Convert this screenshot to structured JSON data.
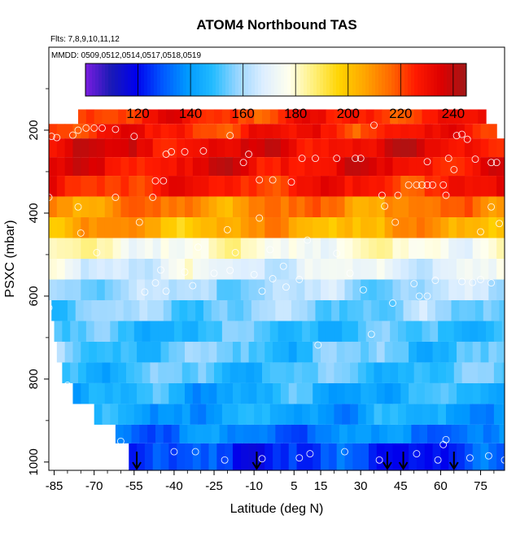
{
  "chart_data": {
    "type": "heatmap",
    "title": "ATOM4 Northbound TAS",
    "flights_note": "Flts: 7,8,9,10,11,12",
    "dates_note": "MMDD: 0509,0512,0514,0517,0518,0519",
    "xlabel": "Latitude (deg N)",
    "ylabel": "PSXC (mbar)",
    "xlim": [
      -87,
      84
    ],
    "ylim": [
      1020,
      0
    ],
    "x_ticks": [
      -85,
      -70,
      -55,
      -40,
      -25,
      -10,
      5,
      15,
      30,
      45,
      60,
      75
    ],
    "y_ticks": [
      200,
      400,
      600,
      800,
      1000
    ],
    "colorbar": {
      "range": [
        100,
        245
      ],
      "ticks": [
        120,
        140,
        160,
        180,
        200,
        220,
        240
      ],
      "colors": [
        "#7a1de0",
        "#1a1ab5",
        "#0000ee",
        "#0055ff",
        "#0099ff",
        "#22bbff",
        "#99d6ff",
        "#ddeeff",
        "#ffffee",
        "#fff07a",
        "#ffd400",
        "#ffa500",
        "#ff6a00",
        "#ff1a00",
        "#dd0000",
        "#a01818"
      ]
    },
    "pressure_levels": [
      200,
      250,
      300,
      350,
      400,
      450,
      500,
      550,
      600,
      650,
      700,
      750,
      800,
      850,
      900,
      950,
      990
    ],
    "layers": [
      {
        "p_top": 150,
        "p_bot": 185,
        "lat_min": -76,
        "lat_max": 77,
        "tas": 225
      },
      {
        "p_top": 185,
        "p_bot": 220,
        "lat_min": -87,
        "lat_max": 81,
        "tas": 226
      },
      {
        "p_top": 220,
        "p_bot": 265,
        "lat_min": -87,
        "lat_max": 84,
        "tas": 232
      },
      {
        "p_top": 265,
        "p_bot": 310,
        "lat_min": -87,
        "lat_max": 84,
        "tas": 231
      },
      {
        "p_top": 310,
        "p_bot": 360,
        "lat_min": -87,
        "lat_max": 84,
        "tas": 226
      },
      {
        "p_top": 360,
        "p_bot": 410,
        "lat_min": -87,
        "lat_max": 84,
        "tas": 212
      },
      {
        "p_top": 410,
        "p_bot": 460,
        "lat_min": -87,
        "lat_max": 84,
        "tas": 205
      },
      {
        "p_top": 460,
        "p_bot": 510,
        "lat_min": -87,
        "lat_max": 84,
        "tas": 178
      },
      {
        "p_top": 510,
        "p_bot": 560,
        "lat_min": -87,
        "lat_max": 84,
        "tas": 170
      },
      {
        "p_top": 560,
        "p_bot": 610,
        "lat_min": -87,
        "lat_max": 84,
        "tas": 160
      },
      {
        "p_top": 610,
        "p_bot": 660,
        "lat_min": -86,
        "lat_max": 84,
        "tas": 156
      },
      {
        "p_top": 660,
        "p_bot": 710,
        "lat_min": -85,
        "lat_max": 84,
        "tas": 150
      },
      {
        "p_top": 710,
        "p_bot": 760,
        "lat_min": -84,
        "lat_max": 84,
        "tas": 152
      },
      {
        "p_top": 760,
        "p_bot": 810,
        "lat_min": -82,
        "lat_max": 84,
        "tas": 150
      },
      {
        "p_top": 810,
        "p_bot": 860,
        "lat_min": -78,
        "lat_max": 84,
        "tas": 145
      },
      {
        "p_top": 860,
        "p_bot": 910,
        "lat_min": -70,
        "lat_max": 84,
        "tas": 142
      },
      {
        "p_top": 910,
        "p_bot": 955,
        "lat_min": -62,
        "lat_max": 84,
        "tas": 135
      },
      {
        "p_top": 955,
        "p_bot": 1020,
        "lat_min": -57,
        "lat_max": 84,
        "tas": 125
      }
    ],
    "profile_points": [
      [
        -86,
        215
      ],
      [
        -84,
        218
      ],
      [
        -78,
        212
      ],
      [
        -76,
        200
      ],
      [
        -73,
        195
      ],
      [
        -70,
        195
      ],
      [
        -67,
        195
      ],
      [
        -62,
        198
      ],
      [
        -55,
        215
      ],
      [
        -43,
        258
      ],
      [
        -41,
        252
      ],
      [
        -36,
        252
      ],
      [
        -29,
        250
      ],
      [
        -19,
        213
      ],
      [
        -14,
        278
      ],
      [
        -12,
        258
      ],
      [
        -8,
        320
      ],
      [
        -3,
        320
      ],
      [
        4,
        325
      ],
      [
        8,
        268
      ],
      [
        13,
        268
      ],
      [
        21,
        268
      ],
      [
        28,
        268
      ],
      [
        30,
        268
      ],
      [
        35,
        188
      ],
      [
        55,
        276
      ],
      [
        63,
        268
      ],
      [
        66,
        213
      ],
      [
        68,
        210
      ],
      [
        70,
        222
      ],
      [
        73,
        270
      ],
      [
        79,
        278
      ],
      [
        81,
        278
      ],
      [
        -47,
        322
      ],
      [
        -44,
        322
      ],
      [
        38,
        357
      ],
      [
        44,
        357
      ],
      [
        48,
        332
      ],
      [
        51,
        332
      ],
      [
        53,
        332
      ],
      [
        55,
        332
      ],
      [
        57,
        332
      ],
      [
        61,
        332
      ],
      [
        65,
        295
      ],
      [
        -87,
        362
      ],
      [
        -62,
        362
      ],
      [
        -48,
        362
      ],
      [
        -8,
        412
      ],
      [
        39,
        383
      ],
      [
        43,
        422
      ],
      [
        62,
        357
      ],
      [
        79,
        385
      ],
      [
        82,
        425
      ],
      [
        -75,
        448
      ],
      [
        -53,
        422
      ],
      [
        -76,
        385
      ],
      [
        -20,
        440
      ],
      [
        -17,
        495
      ],
      [
        10,
        465
      ],
      [
        21,
        497
      ],
      [
        -31,
        482
      ],
      [
        -4,
        488
      ],
      [
        75,
        445
      ],
      [
        -69,
        495
      ],
      [
        -45,
        537
      ],
      [
        -36,
        542
      ],
      [
        -19,
        538
      ],
      [
        -10,
        548
      ],
      [
        1,
        528
      ],
      [
        -3,
        558
      ],
      [
        7,
        560
      ],
      [
        26,
        545
      ],
      [
        -43,
        588
      ],
      [
        -47,
        568
      ],
      [
        -33,
        575
      ],
      [
        -25,
        545
      ],
      [
        -7,
        588
      ],
      [
        2,
        578
      ],
      [
        31,
        585
      ],
      [
        50,
        570
      ],
      [
        55,
        600
      ],
      [
        -87,
        628
      ],
      [
        -51,
        590
      ],
      [
        42,
        617
      ],
      [
        52,
        600
      ],
      [
        58,
        562
      ],
      [
        68,
        565
      ],
      [
        72,
        567
      ],
      [
        75,
        560
      ],
      [
        79,
        568
      ],
      [
        34,
        692
      ],
      [
        14,
        718
      ],
      [
        -80,
        815
      ],
      [
        -60,
        950
      ],
      [
        -40,
        975
      ],
      [
        -32,
        975
      ],
      [
        -21,
        995
      ],
      [
        -7,
        992
      ],
      [
        7,
        990
      ],
      [
        11,
        980
      ],
      [
        24,
        975
      ],
      [
        37,
        995
      ],
      [
        51,
        980
      ],
      [
        59,
        995
      ],
      [
        61,
        958
      ],
      [
        62,
        946
      ],
      [
        71,
        990
      ],
      [
        78,
        985
      ],
      [
        84,
        995
      ]
    ],
    "markers": {
      "type": "downward-arrow",
      "x": [
        -54,
        -9,
        40,
        46,
        65
      ]
    }
  }
}
